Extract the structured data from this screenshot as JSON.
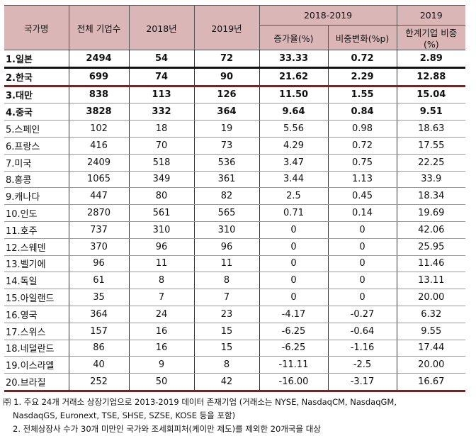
{
  "headers": {
    "country": "국가명",
    "total": "전체 기업수",
    "y2018": "2018년",
    "y2019": "2019년",
    "period": "2018-2019",
    "growth": "증가율(%)",
    "share_change": "비중변화(%p)",
    "year2019": "2019",
    "zombie_share": "한계기업 비중 (%)"
  },
  "rows": [
    [
      "1.일본",
      "2494",
      "54",
      "72",
      "33.33",
      "0.72",
      "2.89"
    ],
    [
      "2.한국",
      "699",
      "74",
      "90",
      "21.62",
      "2.29",
      "12.88"
    ],
    [
      "3.대만",
      "838",
      "113",
      "126",
      "11.50",
      "1.55",
      "15.04"
    ],
    [
      "4.중국",
      "3828",
      "332",
      "364",
      "9.64",
      "0.84",
      "9.51"
    ],
    [
      "5.스페인",
      "102",
      "18",
      "19",
      "5.56",
      "0.98",
      "18.63"
    ],
    [
      "6.프랑스",
      "416",
      "70",
      "73",
      "4.29",
      "0.72",
      "17.55"
    ],
    [
      "7.미국",
      "2409",
      "518",
      "536",
      "3.47",
      "0.75",
      "22.25"
    ],
    [
      "8.홍콩",
      "1065",
      "349",
      "361",
      "3.44",
      "1.13",
      "33.9"
    ],
    [
      "9.캐나다",
      "447",
      "80",
      "82",
      "2.5",
      "0.45",
      "18.34"
    ],
    [
      "10.인도",
      "2870",
      "561",
      "565",
      "0.71",
      "0.14",
      "19.69"
    ],
    [
      "11.호주",
      "737",
      "310",
      "310",
      "0",
      "0",
      "42.06"
    ],
    [
      "12.스웨덴",
      "370",
      "96",
      "96",
      "0",
      "0",
      "25.95"
    ],
    [
      "13.벨기에",
      "96",
      "11",
      "11",
      "0",
      "0",
      "11.46"
    ],
    [
      "14.독일",
      "61",
      "8",
      "8",
      "0",
      "0",
      "13.11"
    ],
    [
      "15.아일랜드",
      "35",
      "7",
      "7",
      "0",
      "0",
      "20.00"
    ],
    [
      "16.영국",
      "364",
      "24",
      "23",
      "-4.17",
      "-0.27",
      "6.32"
    ],
    [
      "17.스위스",
      "157",
      "16",
      "15",
      "-6.25",
      "-0.64",
      "9.55"
    ],
    [
      "18.네덜란드",
      "86",
      "16",
      "15",
      "-6.25",
      "-1.16",
      "17.44"
    ],
    [
      "19.이스라엘",
      "40",
      "9",
      "8",
      "-11.11",
      "-2.5",
      "20.00"
    ],
    [
      "20.브라질",
      "252",
      "50",
      "42",
      "-16.00",
      "-3.17",
      "16.67"
    ]
  ],
  "notes": [
    "㈜ 1. 주요 24개 거래소 상장기업으로 2013-2019 데이터 존재기업 (거래소는 NYSE, NasdaqCM, NasdaqGM,",
    "NasdaqGS, Euronext, TSE, SHSE, SZSE, KOSE 등을 포함)",
    "2. 전체상장사 수가 30개 미만인 국가와 조세회피처(케이만 제도)를 제외한 20개국을 대상"
  ]
}
